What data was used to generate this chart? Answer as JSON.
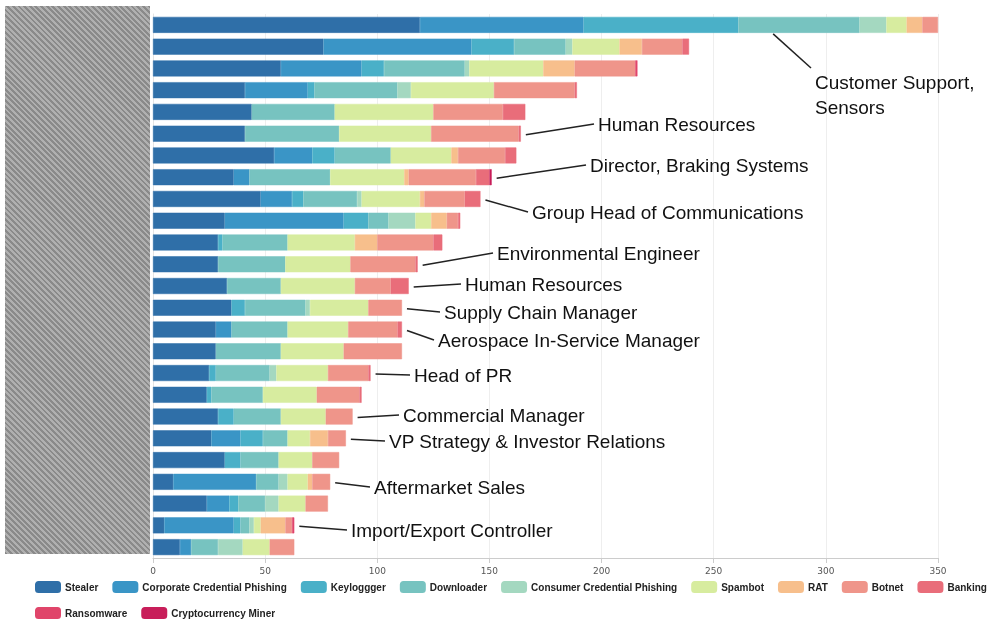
{
  "chart_data": {
    "type": "bar",
    "orientation": "horizontal",
    "stacked": true,
    "tick_labels": "x",
    "grid": "x",
    "legend": "bottom",
    "categories": [
      null,
      null,
      null,
      null,
      null,
      null,
      null,
      null,
      null,
      null,
      null,
      null,
      null,
      null,
      null,
      null,
      null,
      null,
      null,
      null,
      null,
      null,
      null,
      null,
      null
    ],
    "xlim": [
      0,
      350
    ],
    "xticks": [
      0,
      50,
      100,
      150,
      200,
      250,
      300,
      350
    ],
    "series": [
      {
        "name": "Stealer",
        "color": "#2f6fa8",
        "values": [
          119,
          76,
          57,
          41,
          44,
          41,
          54,
          36,
          48,
          32,
          29,
          29,
          33,
          35,
          28,
          28,
          25,
          24,
          29,
          26,
          32,
          9,
          24,
          5,
          12
        ]
      },
      {
        "name": "Corporate Credential Phishing",
        "color": "#3a95c6",
        "values": [
          73,
          66,
          36,
          28,
          null,
          null,
          17,
          7,
          14,
          53,
          null,
          null,
          null,
          null,
          7,
          null,
          null,
          null,
          null,
          13,
          null,
          37,
          10,
          31,
          5
        ]
      },
      {
        "name": "Keyloggger",
        "color": "#4ab0c8",
        "values": [
          69,
          19,
          10,
          3,
          null,
          null,
          10,
          null,
          5,
          11,
          2,
          null,
          null,
          6,
          null,
          null,
          3,
          2,
          7,
          10,
          7,
          null,
          4,
          3,
          null
        ]
      },
      {
        "name": "Downloader",
        "color": "#77c3c0",
        "values": [
          54,
          23,
          36,
          37,
          37,
          42,
          25,
          36,
          24,
          9,
          29,
          30,
          24,
          27,
          25,
          29,
          24,
          23,
          21,
          11,
          17,
          10,
          12,
          4,
          12
        ]
      },
      {
        "name": "Consumer Credential Phishing",
        "color": "#a4d8c0",
        "values": [
          12,
          3,
          2,
          6,
          null,
          null,
          null,
          null,
          2,
          12,
          null,
          null,
          null,
          2,
          null,
          null,
          3,
          null,
          null,
          null,
          null,
          4,
          6,
          2,
          11
        ]
      },
      {
        "name": "Spambot",
        "color": "#d7ec9f",
        "values": [
          9,
          21,
          33,
          37,
          44,
          41,
          27,
          33,
          26,
          7,
          30,
          29,
          33,
          26,
          27,
          28,
          23,
          24,
          20,
          10,
          15,
          9,
          12,
          3,
          12
        ]
      },
      {
        "name": "RAT",
        "color": "#f7bf8c",
        "values": [
          7,
          10,
          14,
          null,
          null,
          null,
          3,
          2,
          2,
          7,
          10,
          null,
          null,
          null,
          null,
          null,
          null,
          null,
          null,
          8,
          null,
          2,
          null,
          11,
          null
        ]
      },
      {
        "name": "Botnet",
        "color": "#ef958a",
        "values": [
          7,
          18,
          27,
          36,
          31,
          39,
          21,
          30,
          18,
          5,
          25,
          29,
          16,
          15,
          22,
          26,
          18,
          19,
          12,
          8,
          12,
          8,
          10,
          3,
          11
        ]
      },
      {
        "name": "Banking",
        "color": "#e96d7a",
        "values": [
          null,
          3,
          null,
          1,
          10,
          1,
          5,
          6,
          7,
          1,
          4,
          1,
          8,
          null,
          2,
          null,
          1,
          1,
          null,
          null,
          null,
          null,
          null,
          null,
          null
        ]
      },
      {
        "name": "Ransomware",
        "color": "#e0456a",
        "values": [
          null,
          null,
          1,
          null,
          null,
          null,
          null,
          null,
          null,
          null,
          null,
          null,
          null,
          null,
          null,
          null,
          null,
          null,
          null,
          null,
          null,
          null,
          null,
          1,
          null
        ]
      },
      {
        "name": "Cryptocurrency Miner",
        "color": "#c81e5a",
        "values": [
          null,
          null,
          null,
          null,
          null,
          null,
          null,
          1,
          null,
          null,
          null,
          null,
          null,
          null,
          null,
          null,
          null,
          null,
          null,
          null,
          null,
          null,
          null,
          null,
          null
        ]
      }
    ],
    "annotations": [
      "Customer Support,\nSensors",
      "Human Resources",
      "Director, Braking Systems",
      "Group Head of Communications",
      "Environmental Engineer",
      "Human Resources",
      "Supply Chain Manager",
      "Aerospace In-Service Manager",
      "Head of PR",
      "Commercial Manager",
      "VP Strategy & Investor Relations",
      "Aftermarket Sales",
      "Import/Export Controller"
    ]
  }
}
